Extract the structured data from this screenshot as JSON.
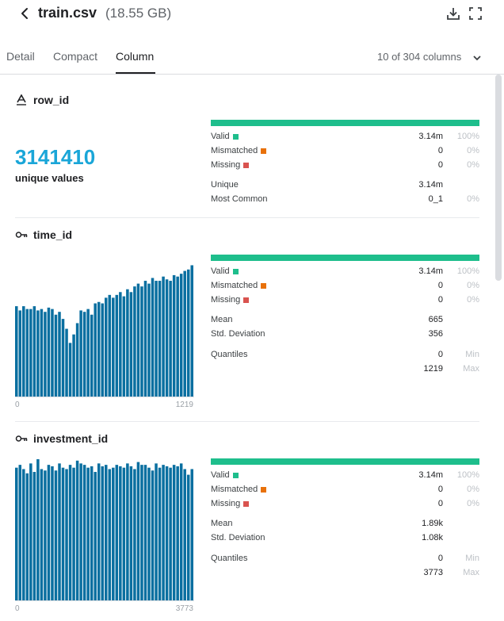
{
  "header": {
    "title": "train.csv",
    "size": "(18.55 GB)"
  },
  "tabs": [
    {
      "label": "Detail"
    },
    {
      "label": "Compact"
    },
    {
      "label": "Column"
    }
  ],
  "columns_selector": {
    "label": "10 of 304 columns"
  },
  "colors": {
    "accent": "#1aa6d8",
    "valid": "#1ebe8c",
    "mismatched": "#e8710a",
    "missing": "#d93025",
    "histogram_bar": "#0a6fa0"
  },
  "sections": [
    {
      "name": "row_id",
      "icon": "text-type-icon",
      "unique_count": "3141410",
      "unique_label": "unique values",
      "valid": {
        "label": "Valid",
        "value": "3.14m",
        "pct": "100%"
      },
      "mismatched": {
        "label": "Mismatched",
        "value": "0",
        "pct": "0%"
      },
      "missing": {
        "label": "Missing",
        "value": "0",
        "pct": "0%"
      },
      "unique": {
        "label": "Unique",
        "value": "3.14m"
      },
      "most_common": {
        "label": "Most Common",
        "value": "0_1",
        "pct": "0%"
      }
    },
    {
      "name": "time_id",
      "icon": "key-icon",
      "valid": {
        "label": "Valid",
        "value": "3.14m",
        "pct": "100%"
      },
      "mismatched": {
        "label": "Mismatched",
        "value": "0",
        "pct": "0%"
      },
      "missing": {
        "label": "Missing",
        "value": "0",
        "pct": "0%"
      },
      "mean": {
        "label": "Mean",
        "value": "665"
      },
      "std": {
        "label": "Std. Deviation",
        "value": "356"
      },
      "quantiles": {
        "label": "Quantiles",
        "min": "0",
        "min_label": "Min",
        "max": "1219",
        "max_label": "Max"
      },
      "histogram": {
        "x_min": "0",
        "x_max": "1219",
        "bars": [
          0.64,
          0.61,
          0.64,
          0.62,
          0.62,
          0.64,
          0.61,
          0.62,
          0.6,
          0.63,
          0.62,
          0.58,
          0.6,
          0.55,
          0.48,
          0.38,
          0.44,
          0.52,
          0.61,
          0.6,
          0.62,
          0.58,
          0.66,
          0.67,
          0.66,
          0.7,
          0.72,
          0.7,
          0.72,
          0.74,
          0.71,
          0.76,
          0.74,
          0.78,
          0.8,
          0.78,
          0.82,
          0.8,
          0.84,
          0.82,
          0.82,
          0.85,
          0.83,
          0.82,
          0.86,
          0.85,
          0.87,
          0.89,
          0.9,
          0.93
        ]
      }
    },
    {
      "name": "investment_id",
      "icon": "key-icon",
      "valid": {
        "label": "Valid",
        "value": "3.14m",
        "pct": "100%"
      },
      "mismatched": {
        "label": "Mismatched",
        "value": "0",
        "pct": "0%"
      },
      "missing": {
        "label": "Missing",
        "value": "0",
        "pct": "0%"
      },
      "mean": {
        "label": "Mean",
        "value": "1.89k"
      },
      "std": {
        "label": "Std. Deviation",
        "value": "1.08k"
      },
      "quantiles": {
        "label": "Quantiles",
        "min": "0",
        "min_label": "Min",
        "max": "3773",
        "max_label": "Max"
      },
      "histogram": {
        "x_min": "0",
        "x_max": "3773",
        "bars": [
          0.94,
          0.96,
          0.93,
          0.9,
          0.97,
          0.91,
          1.0,
          0.93,
          0.92,
          0.96,
          0.95,
          0.92,
          0.97,
          0.94,
          0.93,
          0.96,
          0.94,
          0.99,
          0.97,
          0.96,
          0.94,
          0.95,
          0.91,
          0.97,
          0.95,
          0.96,
          0.93,
          0.94,
          0.96,
          0.95,
          0.94,
          0.97,
          0.95,
          0.93,
          0.98,
          0.96,
          0.96,
          0.94,
          0.92,
          0.97,
          0.94,
          0.96,
          0.95,
          0.94,
          0.96,
          0.95,
          0.97,
          0.93,
          0.89,
          0.93
        ]
      }
    }
  ]
}
